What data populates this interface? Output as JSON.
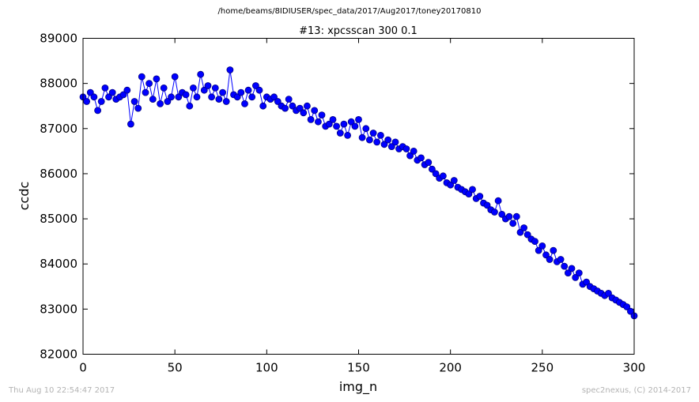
{
  "figure": {
    "suptitle": "/home/beams/8IDIUSER/spec_data/2017/Aug2017/toney20170810",
    "timestamp": "Thu Aug 10 22:54:47 2017",
    "credit": "spec2nexus, (C) 2014-2017"
  },
  "colors": {
    "series": "#0000ff",
    "marker_edge": "#000080",
    "axes": "#000000"
  },
  "chart_data": {
    "type": "line",
    "title": "#13: xpcsscan 300 0.1",
    "xlabel": "img_n",
    "ylabel": "ccdc",
    "xlim": [
      0,
      300
    ],
    "ylim": [
      82000,
      89000
    ],
    "xticks": [
      0,
      50,
      100,
      150,
      200,
      250,
      300
    ],
    "yticks": [
      82000,
      83000,
      84000,
      85000,
      86000,
      87000,
      88000,
      89000
    ],
    "xtick_labels": [
      "0",
      "50",
      "100",
      "150",
      "200",
      "250",
      "300"
    ],
    "ytick_labels": [
      "82000",
      "83000",
      "84000",
      "85000",
      "86000",
      "87000",
      "88000",
      "89000"
    ],
    "grid": false,
    "marker": "circle",
    "series": [
      {
        "x": [
          0,
          2,
          4,
          6,
          8,
          10,
          12,
          14,
          16,
          18,
          20,
          22,
          24,
          26,
          28,
          30,
          32,
          34,
          36,
          38,
          40,
          42,
          44,
          46,
          48,
          50,
          52,
          54,
          56,
          58,
          60,
          62,
          64,
          66,
          68,
          70,
          72,
          74,
          76,
          78,
          80,
          82,
          84,
          86,
          88,
          90,
          92,
          94,
          96,
          98,
          100,
          102,
          104,
          106,
          108,
          110,
          112,
          114,
          116,
          118,
          120,
          122,
          124,
          126,
          128,
          130,
          132,
          134,
          136,
          138,
          140,
          142,
          144,
          146,
          148,
          150,
          152,
          154,
          156,
          158,
          160,
          162,
          164,
          166,
          168,
          170,
          172,
          174,
          176,
          178,
          180,
          182,
          184,
          186,
          188,
          190,
          192,
          194,
          196,
          198,
          200,
          202,
          204,
          206,
          208,
          210,
          212,
          214,
          216,
          218,
          220,
          222,
          224,
          226,
          228,
          230,
          232,
          234,
          236,
          238,
          240,
          242,
          244,
          246,
          248,
          250,
          252,
          254,
          256,
          258,
          260,
          262,
          264,
          266,
          268,
          270,
          272,
          274,
          276,
          278,
          280,
          282,
          284,
          286,
          288,
          290,
          292,
          294,
          296,
          298,
          300
        ],
        "values": [
          87700,
          87600,
          87800,
          87700,
          87400,
          87600,
          87900,
          87700,
          87800,
          87650,
          87700,
          87750,
          87850,
          87100,
          87600,
          87450,
          88150,
          87800,
          88000,
          87650,
          88100,
          87550,
          87900,
          87600,
          87700,
          88150,
          87700,
          87800,
          87750,
          87500,
          87900,
          87700,
          88200,
          87850,
          87950,
          87700,
          87900,
          87650,
          87800,
          87600,
          88300,
          87750,
          87700,
          87800,
          87550,
          87850,
          87700,
          87950,
          87850,
          87500,
          87700,
          87650,
          87700,
          87600,
          87500,
          87450,
          87650,
          87500,
          87400,
          87450,
          87350,
          87500,
          87200,
          87400,
          87150,
          87300,
          87050,
          87100,
          87200,
          87050,
          86900,
          87100,
          86850,
          87150,
          87050,
          87200,
          86800,
          87000,
          86750,
          86900,
          86700,
          86850,
          86650,
          86750,
          86600,
          86700,
          86550,
          86600,
          86550,
          86400,
          86500,
          86300,
          86350,
          86200,
          86250,
          86100,
          86000,
          85900,
          85950,
          85800,
          85750,
          85850,
          85700,
          85650,
          85600,
          85550,
          85650,
          85450,
          85500,
          85350,
          85300,
          85200,
          85150,
          85400,
          85100,
          85000,
          85050,
          84900,
          85050,
          84700,
          84800,
          84650,
          84550,
          84500,
          84300,
          84400,
          84200,
          84100,
          84300,
          84050,
          84100,
          83950,
          83800,
          83900,
          83700,
          83800,
          83550,
          83600,
          83500,
          83450,
          83400,
          83350,
          83300,
          83350,
          83250,
          83200,
          83150,
          83100,
          83050,
          82950,
          82850
        ]
      }
    ]
  }
}
